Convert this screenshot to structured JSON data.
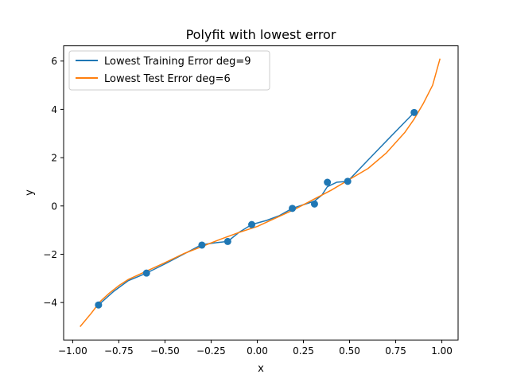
{
  "chart_data": {
    "type": "line",
    "title": "Polyfit with lowest error",
    "xlabel": "x",
    "ylabel": "y",
    "xlim": [
      -1.049,
      1.088
    ],
    "ylim": [
      -5.55,
      6.63
    ],
    "xticks": [
      -1.0,
      -0.75,
      -0.5,
      -0.25,
      0.0,
      0.25,
      0.5,
      0.75,
      1.0
    ],
    "xtick_labels": [
      "−1.00",
      "−0.75",
      "−0.50",
      "−0.25",
      "0.00",
      "0.25",
      "0.50",
      "0.75",
      "1.00"
    ],
    "yticks": [
      -4,
      -2,
      0,
      2,
      4,
      6
    ],
    "ytick_labels": [
      "−4",
      "−2",
      "0",
      "2",
      "4",
      "6"
    ],
    "grid": false,
    "legend_position": "top-left",
    "scatter": {
      "color": "#1f77b4",
      "points": [
        {
          "x": -0.86,
          "y": -4.1
        },
        {
          "x": -0.6,
          "y": -2.78
        },
        {
          "x": -0.3,
          "y": -1.62
        },
        {
          "x": -0.16,
          "y": -1.47
        },
        {
          "x": -0.03,
          "y": -0.77
        },
        {
          "x": 0.19,
          "y": -0.1
        },
        {
          "x": 0.31,
          "y": 0.08
        },
        {
          "x": 0.38,
          "y": 0.98
        },
        {
          "x": 0.49,
          "y": 1.02
        },
        {
          "x": 0.85,
          "y": 3.87
        }
      ]
    },
    "series": [
      {
        "name": "Lowest Training Error deg=9",
        "color": "#1f77b4",
        "x": [
          -0.86,
          -0.78,
          -0.7,
          -0.6,
          -0.5,
          -0.4,
          -0.3,
          -0.22,
          -0.16,
          -0.1,
          -0.03,
          0.05,
          0.12,
          0.19,
          0.25,
          0.31,
          0.35,
          0.38,
          0.43,
          0.49,
          0.6,
          0.72,
          0.85
        ],
        "y": [
          -4.1,
          -3.55,
          -3.1,
          -2.78,
          -2.4,
          -2.0,
          -1.6,
          -1.52,
          -1.47,
          -1.1,
          -0.77,
          -0.6,
          -0.4,
          -0.1,
          0.05,
          0.2,
          0.45,
          0.8,
          0.98,
          1.02,
          1.9,
          2.85,
          3.87
        ]
      },
      {
        "name": "Lowest Test Error deg=6",
        "color": "#ff7f0e",
        "x": [
          -0.96,
          -0.9,
          -0.85,
          -0.8,
          -0.75,
          -0.7,
          -0.6,
          -0.5,
          -0.4,
          -0.3,
          -0.2,
          -0.1,
          0.0,
          0.1,
          0.2,
          0.3,
          0.4,
          0.5,
          0.6,
          0.7,
          0.8,
          0.85,
          0.9,
          0.95,
          0.99
        ],
        "y": [
          -5.0,
          -4.45,
          -3.95,
          -3.6,
          -3.3,
          -3.05,
          -2.7,
          -2.35,
          -1.98,
          -1.68,
          -1.38,
          -1.1,
          -0.85,
          -0.5,
          -0.15,
          0.25,
          0.65,
          1.1,
          1.55,
          2.2,
          3.05,
          3.6,
          4.25,
          5.0,
          6.1
        ]
      }
    ]
  }
}
